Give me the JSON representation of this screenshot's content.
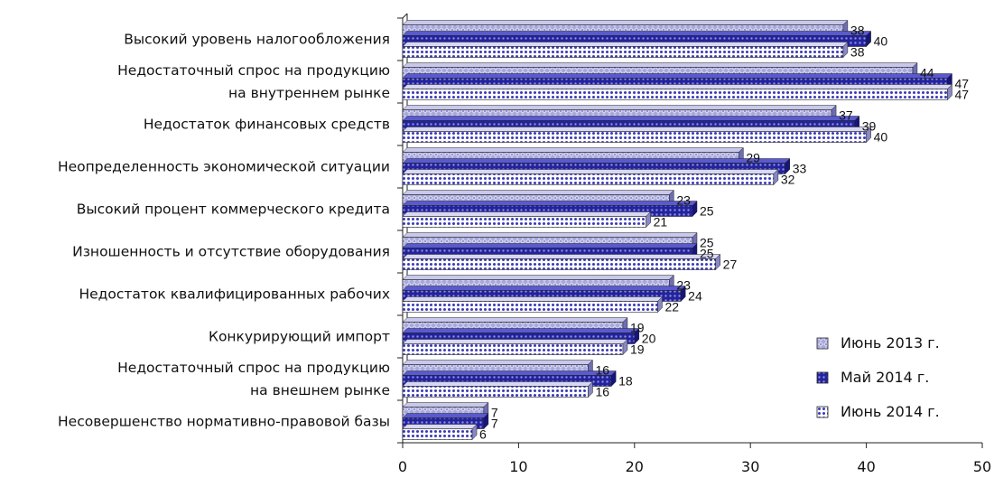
{
  "chart_data": {
    "type": "bar",
    "orientation": "horizontal",
    "title": "",
    "xlabel": "",
    "ylabel": "",
    "xlim": [
      0,
      50
    ],
    "x_ticks": [
      "0",
      "10",
      "20",
      "30",
      "40",
      "50"
    ],
    "grid": false,
    "legend_position": "bottom-right",
    "categories": [
      [
        "Высокий уровень налогообложения"
      ],
      [
        "Недостаточный спрос на продукцию",
        "на внутреннем рынке"
      ],
      [
        "Недостаток финансовых средств"
      ],
      [
        "Неопределенность экономической ситуации"
      ],
      [
        "Высокий процент коммерческого кредита"
      ],
      [
        "Изношенность и отсутствие оборудования"
      ],
      [
        "Недостаток квалифицированных рабочих"
      ],
      [
        "Конкурирующий импорт"
      ],
      [
        "Недостаточный спрос на продукцию",
        "на внешнем рынке"
      ],
      [
        "Несовершенство нормативно-правовой базы"
      ]
    ],
    "series": [
      {
        "name": "Июнь 2013 г.",
        "values": [
          38,
          44,
          37,
          29,
          23,
          25,
          23,
          19,
          16,
          7
        ],
        "color": "#9a9ad8",
        "pattern": "diamond"
      },
      {
        "name": "Май 2014 г.",
        "values": [
          40,
          47,
          39,
          33,
          25,
          25,
          24,
          20,
          18,
          7
        ],
        "color": "#2a2ab0",
        "pattern": "dots-dark"
      },
      {
        "name": "Июнь 2014 г.",
        "values": [
          38,
          47,
          40,
          32,
          21,
          27,
          22,
          19,
          16,
          6
        ],
        "color": "#5555cc",
        "pattern": "dots-light"
      }
    ]
  }
}
